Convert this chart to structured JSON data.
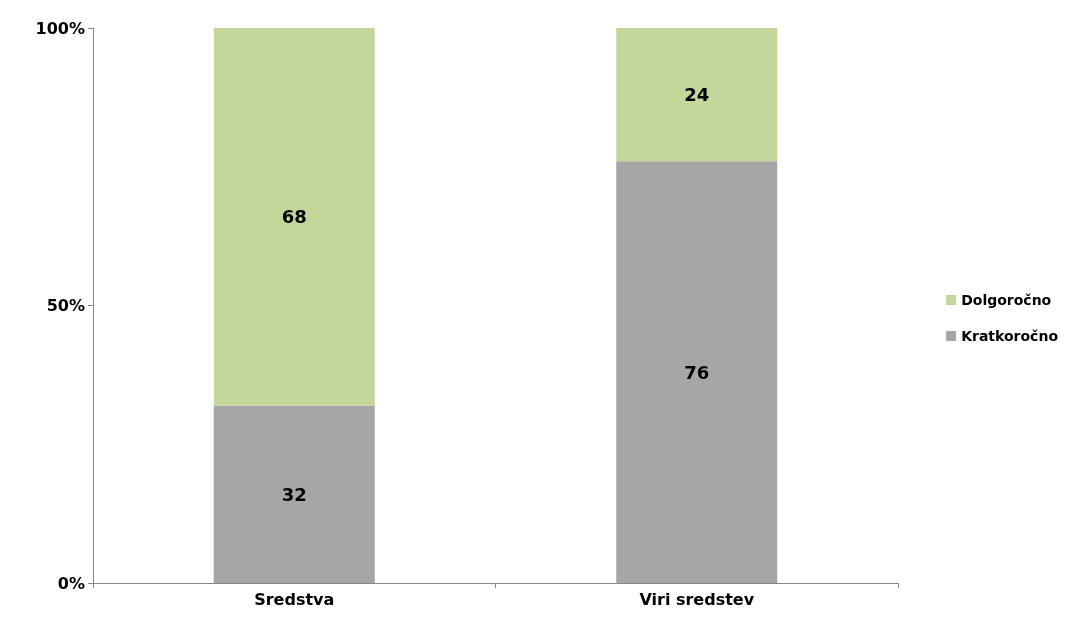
{
  "chart_data": {
    "type": "bar",
    "stacked": true,
    "categories": [
      "Sredstva",
      "Viri sredstev"
    ],
    "series": [
      {
        "name": "Kratkoročno",
        "color": "#a6a6a6",
        "values": [
          32,
          76
        ]
      },
      {
        "name": "Dolgoročno",
        "color": "#c4d79b",
        "values": [
          68,
          24
        ]
      }
    ],
    "ylim": [
      0,
      100
    ],
    "yticks": [
      {
        "value": 0,
        "label": "0%"
      },
      {
        "value": 50,
        "label": "50%"
      },
      {
        "value": 100,
        "label": "100%"
      }
    ],
    "grid": false,
    "legend": "right",
    "data_labels": true
  }
}
